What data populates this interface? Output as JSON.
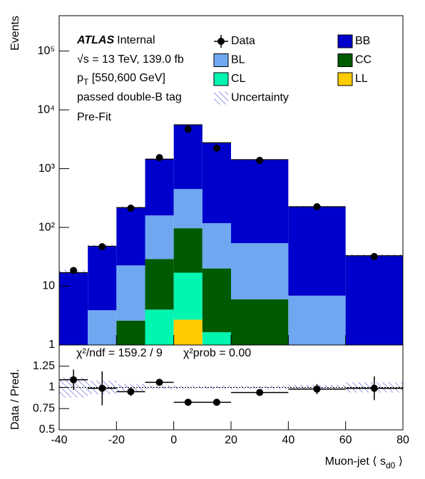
{
  "chart_data": [
    {
      "type": "stacked-histogram",
      "ylabel": "Events",
      "bins": [
        -40,
        -30,
        -20,
        -10,
        0,
        10,
        20,
        40,
        60,
        80
      ],
      "series": [
        {
          "name": "BB",
          "color": "#0000cc",
          "values": [
            17,
            44,
            195,
            1290,
            5110,
            2640,
            1370,
            218,
            33
          ]
        },
        {
          "name": "BL",
          "color": "#6fa8f0",
          "values": [
            0,
            3.9,
            20,
            131,
            353,
            98,
            48,
            6.9,
            0
          ]
        },
        {
          "name": "CC",
          "color": "#005a00",
          "values": [
            0,
            0,
            2.6,
            25,
            80,
            18.4,
            6,
            0,
            0
          ]
        },
        {
          "name": "CL",
          "color": "#00f5b0",
          "values": [
            0,
            0,
            0,
            4,
            14.3,
            1.65,
            0,
            0,
            0
          ]
        },
        {
          "name": "LL",
          "color": "#ffcc00",
          "values": [
            0,
            0,
            0,
            0,
            2.7,
            0,
            0,
            0,
            0
          ]
        }
      ],
      "data": {
        "name": "Data",
        "x": [
          -35,
          -25,
          -15,
          -5,
          5,
          15,
          30,
          50,
          70
        ],
        "values": [
          18.5,
          47,
          213,
          1540,
          4700,
          2230,
          1380,
          225,
          32
        ]
      },
      "uncertainty_name": "Uncertainty",
      "log_y": true,
      "ylim": [
        1,
        400000
      ],
      "yticks": [
        {
          "value": 1,
          "label": "1"
        },
        {
          "value": 10,
          "label": "10"
        },
        {
          "value": 100,
          "label": "10²"
        },
        {
          "value": 1000,
          "label": "10³"
        },
        {
          "value": 10000,
          "label": "10⁴"
        },
        {
          "value": 100000,
          "label": "10⁵"
        }
      ],
      "atlas": "ATLAS",
      "atlas_status": "Internal",
      "energy": "√s = 13 TeV, 139.0 fb",
      "pt_parts": [
        "p",
        "T",
        " [550,600 GeV]"
      ],
      "selection": "passed double-B tag",
      "stage": "Pre-Fit"
    },
    {
      "type": "ratio",
      "ylabel": "Data / Pred.",
      "xlabel_parts": [
        "Muon-jet ⟨ s",
        "d0",
        " ⟩"
      ],
      "x": [
        -35,
        -25,
        -15,
        -5,
        5,
        15,
        30,
        50,
        70
      ],
      "values": [
        1.09,
        0.99,
        0.95,
        1.06,
        0.825,
        0.825,
        0.94,
        0.98,
        0.99
      ],
      "errors": [
        0.12,
        0.2,
        0.05,
        0.03,
        0.02,
        0.02,
        0.03,
        0.06,
        0.14
      ],
      "uncertainty": [
        0.12,
        0.08,
        0.04,
        0.02,
        0.02,
        0.02,
        0.02,
        0.03,
        0.06
      ],
      "xlim": [
        -40,
        80
      ],
      "xticks": [
        -40,
        -20,
        0,
        20,
        40,
        60,
        80
      ],
      "ylim": [
        0.5,
        1.5
      ],
      "yticks": [
        0.5,
        0.75,
        1,
        1.25
      ],
      "chi2_ndf": "χ²/ndf = 159.2 / 9",
      "chi2_prob": "χ²prob = 0.00"
    }
  ]
}
